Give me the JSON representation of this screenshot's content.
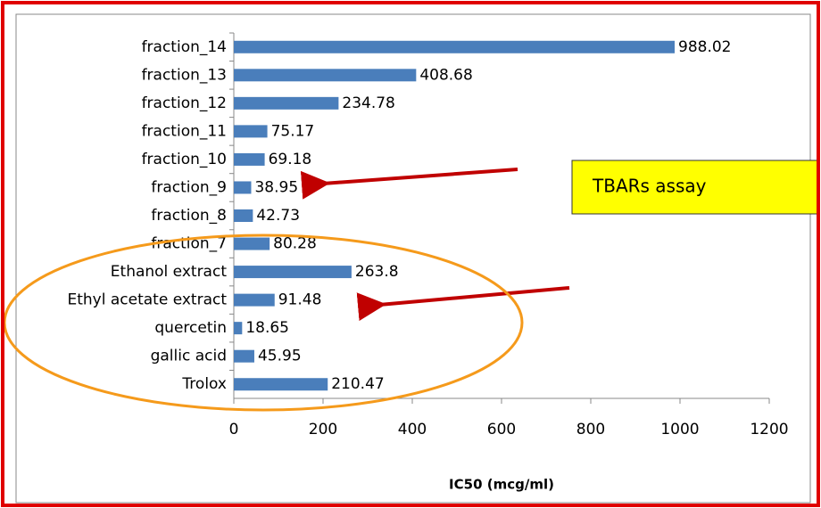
{
  "chart_data": {
    "type": "bar",
    "orientation": "horizontal",
    "categories": [
      "fraction_14",
      "fraction_13",
      "fraction_12",
      "fraction_11",
      "fraction_10",
      "fraction_9",
      "fraction_8",
      "fraction_7",
      "Ethanol extract",
      "Ethyl acetate extract",
      "quercetin",
      "gallic acid",
      "Trolox"
    ],
    "values": [
      988.02,
      408.68,
      234.78,
      75.17,
      69.18,
      38.95,
      42.73,
      80.28,
      263.8,
      91.48,
      18.65,
      45.95,
      210.47
    ],
    "color": "#4a7ebb",
    "xlabel": "IC50 (mcg/ml)",
    "xlim": [
      0,
      1200
    ],
    "xticks": [
      0,
      200,
      400,
      600,
      800,
      1000,
      1200
    ],
    "annotation": "TBARs assay"
  }
}
